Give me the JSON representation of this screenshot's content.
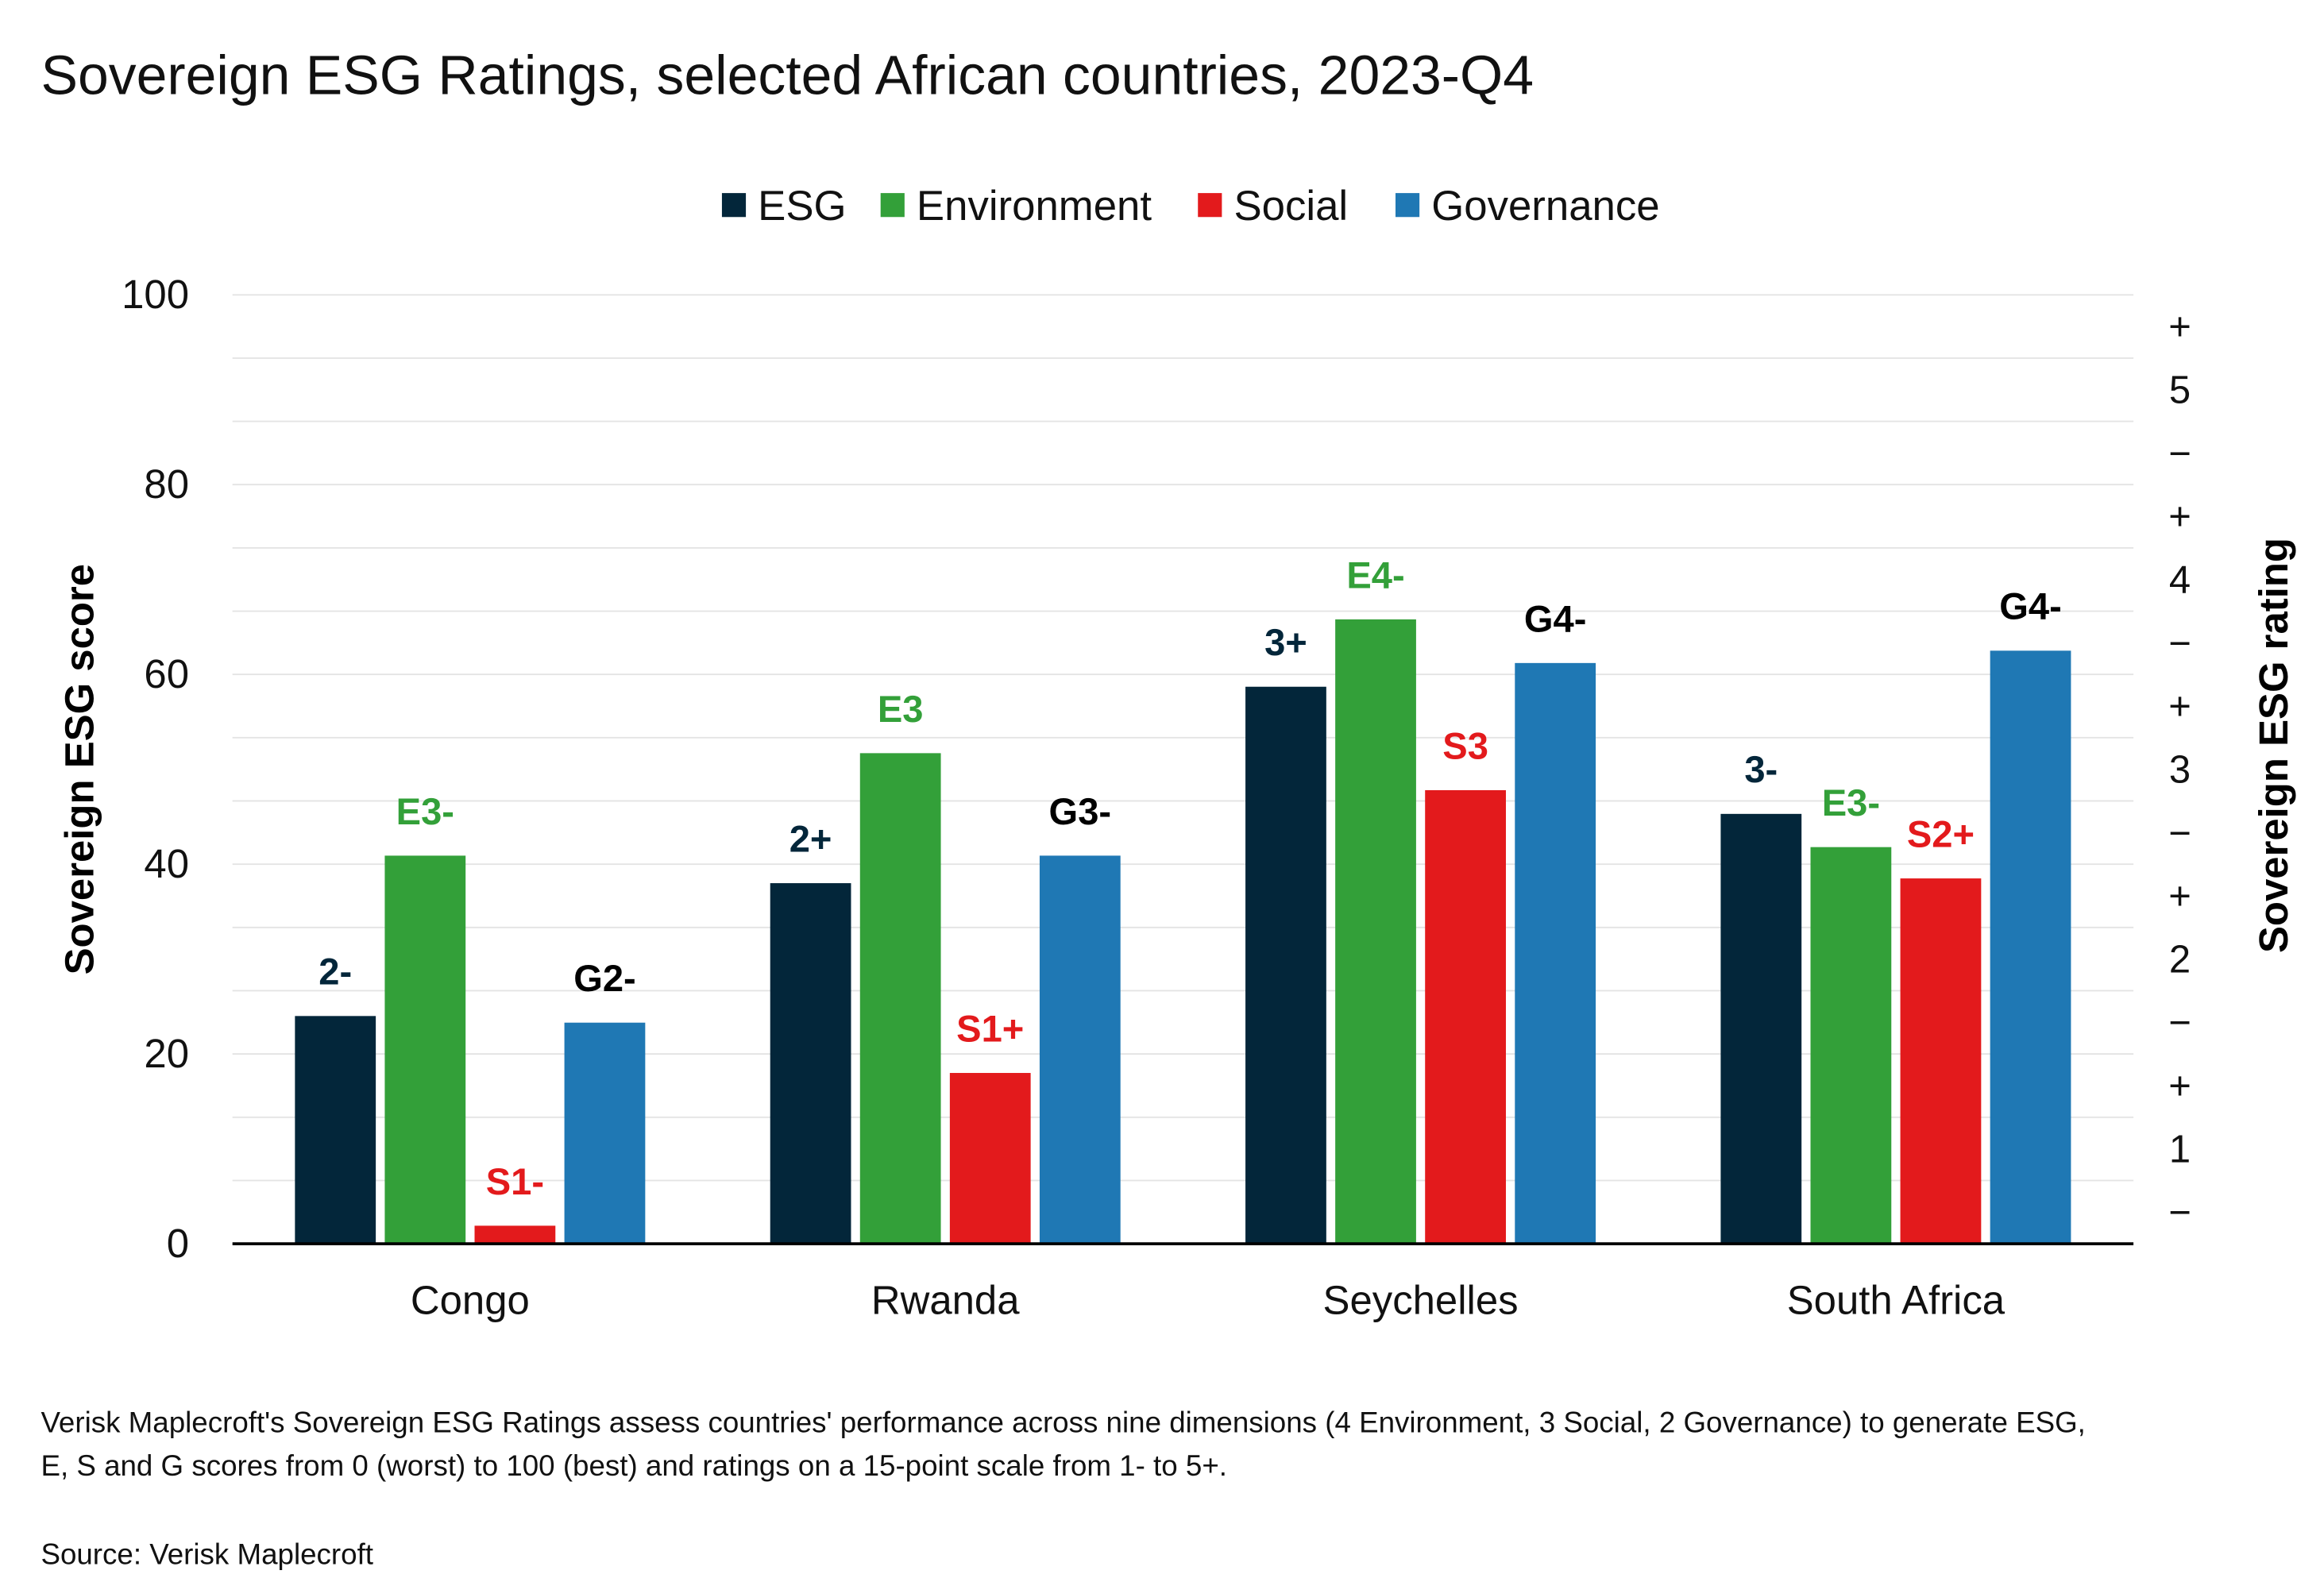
{
  "chart_data": {
    "type": "bar",
    "title": "Sovereign ESG Ratings, selected African countries, 2023-Q4",
    "categories": [
      "Congo",
      "Rwanda",
      "Seychelles",
      "South Africa"
    ],
    "series": [
      {
        "name": "ESG",
        "color": "#03263a",
        "label_color": "#03263a",
        "values": [
          24.0,
          38.0,
          58.7,
          45.3
        ],
        "ratings": [
          "2-",
          "2+",
          "3+",
          "3-"
        ]
      },
      {
        "name": "Environment",
        "color": "#33a039",
        "label_color": "#33a039",
        "values": [
          40.9,
          51.7,
          65.8,
          41.8
        ],
        "ratings": [
          "E3-",
          "E3",
          "E4-",
          "E3-"
        ]
      },
      {
        "name": "Social",
        "color": "#e31a1c",
        "label_color": "#e31a1c",
        "values": [
          1.9,
          18.0,
          47.8,
          38.5
        ],
        "ratings": [
          "S1-",
          "S1+",
          "S3",
          "S2+"
        ]
      },
      {
        "name": "Governance",
        "color": "#1f78b4",
        "label_color": "#000000",
        "values": [
          23.3,
          40.9,
          61.2,
          62.5
        ],
        "ratings": [
          "G2-",
          "G3-",
          "G4-",
          "G4-"
        ]
      }
    ],
    "ylabel": "Sovereign ESG score",
    "ylim": [
      0,
      100
    ],
    "yticks": [
      "0",
      "20",
      "40",
      "60",
      "80",
      "100"
    ],
    "y2label": "Sovereign ESG rating",
    "y2ticks": [
      "−",
      "1",
      "+",
      "−",
      "2",
      "+",
      "−",
      "3",
      "+",
      "−",
      "4",
      "+",
      "−",
      "5",
      "+"
    ],
    "grid": true,
    "legend": "top-center"
  },
  "footnote": {
    "line1": "Verisk Maplecroft's Sovereign ESG Ratings assess countries' performance across nine dimensions (4 Environment, 3 Social, 2 Governance) to generate ESG,",
    "line2": "E, S and G scores from 0 (worst) to 100 (best) and ratings on a 15-point scale from 1- to 5+.",
    "source": "Source: Verisk Maplecroft"
  }
}
